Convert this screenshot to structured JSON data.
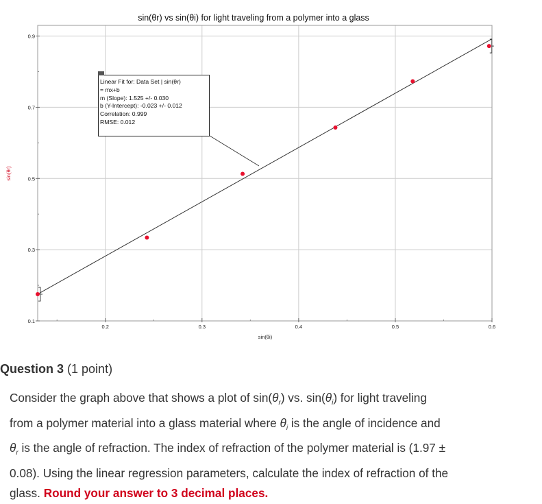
{
  "chart_data": {
    "type": "scatter",
    "title": "sin(θr) vs sin(θi) for light traveling from a polymer into a glass",
    "xlabel": "sin(θi)",
    "ylabel": "sin(θr)",
    "xlim": [
      0.13,
      0.6
    ],
    "ylim": [
      0.1,
      0.93
    ],
    "x_ticks": [
      0.2,
      0.3,
      0.4,
      0.5,
      0.6
    ],
    "x_tick_labels": [
      "0.2",
      "0.3",
      "0.4",
      "0.5",
      "0.6"
    ],
    "y_ticks": [
      0.1,
      0.3,
      0.5,
      0.7,
      0.9
    ],
    "y_tick_labels": [
      "0.1",
      "0.3",
      "0.5",
      "0.7",
      "0.9"
    ],
    "grid": true,
    "series": [
      {
        "x": [
          0.13,
          0.243,
          0.342,
          0.438,
          0.518,
          0.597
        ],
        "y": [
          0.175,
          0.334,
          0.513,
          0.643,
          0.773,
          0.872
        ]
      }
    ],
    "fit": {
      "slope": 1.525,
      "intercept": -0.023,
      "lines": [
        "Linear Fit for: Data Set | sin(θr)",
        "= mx+b",
        "m (Slope): 1.525 +/- 0.030",
        "b (Y-Intercept): -0.023 +/- 0.012",
        "Correlation: 0.999",
        "RMSE: 0.012"
      ]
    },
    "colors": {
      "points": "#e8102e",
      "line": "#333333",
      "grid": "#cccccc"
    }
  },
  "question": {
    "heading": "Question 3",
    "points": "(1 point)",
    "line1_a": "Consider the graph above that shows a plot of sin(",
    "theta": "θ",
    "r": "r",
    "i": "i",
    "line1_b": ") vs. sin(",
    "line1_c": ") for light traveling",
    "line2_a": "from a polymer material into a glass material where ",
    "line2_b": " is the angle of incidence and",
    "line3_a": " is the angle of refraction. The index of refraction of the polymer material is (1.97 ±",
    "line4": "0.08). Using the linear regression parameters, calculate the index of refraction of the",
    "line5_a": "glass. ",
    "line5_red": "Round your answer to 3 decimal places."
  }
}
